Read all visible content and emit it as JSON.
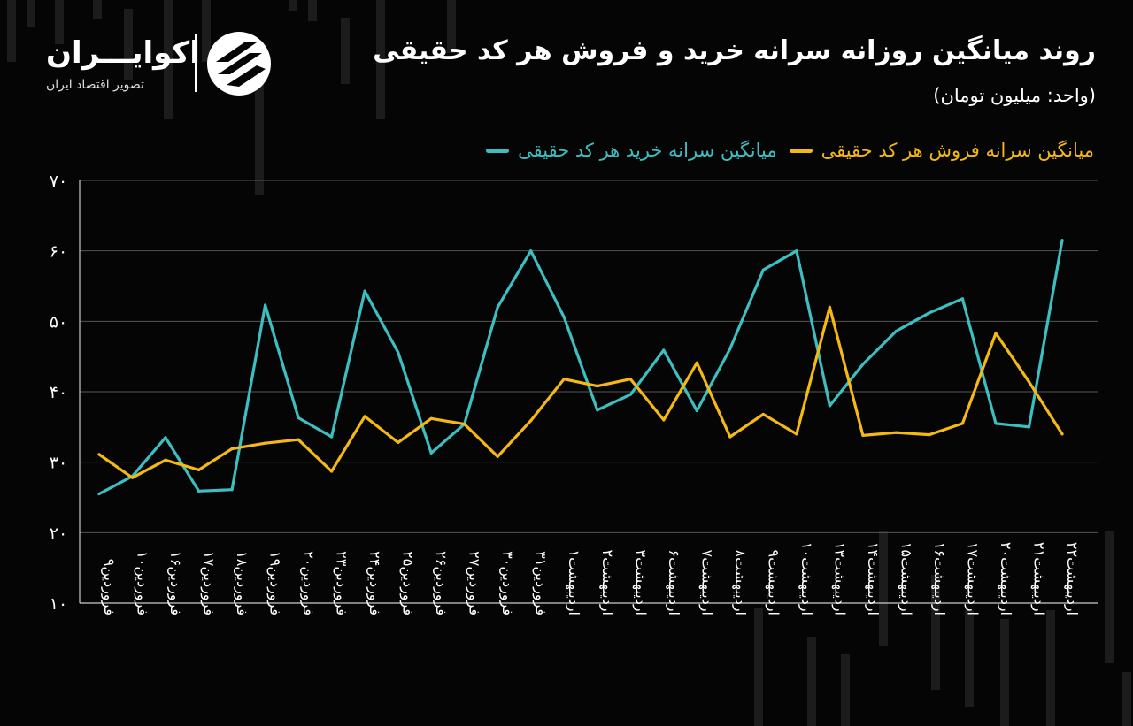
{
  "header": {
    "title": "روند میانگین روزانه سرانه خرید و فروش هر کد حقیقی",
    "unit": "(واحد: میلیون تومان)"
  },
  "brand": {
    "name": "اکوایـــران",
    "tagline": "تصویر اقتصاد ایران"
  },
  "colors": {
    "buy": "#3dbfc2",
    "sell": "#f5b914",
    "background": "#050505",
    "grid": "#555555"
  },
  "chart_data": {
    "type": "line",
    "title": "روند میانگین روزانه سرانه خرید و فروش هر کد حقیقی",
    "ylabel": "(واحد: میلیون تومان)",
    "xlabel": "",
    "ylim": [
      10,
      70
    ],
    "yticks": [
      "۱۰",
      "۲۰",
      "۳۰",
      "۴۰",
      "۵۰",
      "۶۰",
      "۷۰"
    ],
    "ytick_values": [
      10,
      20,
      30,
      40,
      50,
      60,
      70
    ],
    "grid": true,
    "legend_position": "top-right",
    "categories": [
      "فروردین۹",
      "فروردین۱۰",
      "فروردین۱۶",
      "فروردین۱۷",
      "فروردین۱۸",
      "فروردین۱۹",
      "فروردین۲۰",
      "فروردین۲۳",
      "فروردین۲۴",
      "فروردین۲۵",
      "فروردین۲۶",
      "فروردین۲۷",
      "فروردین۳۰",
      "فروردین۳۱",
      "اردیبهشت۱",
      "اردیبهشت۲",
      "اردیبهشت۳",
      "اردیبهشت۶",
      "اردیبهشت۷",
      "اردیبهشت۸",
      "اردیبهشت۹",
      "اردیبهشت۱۰",
      "اردیبهشت۱۳",
      "اردیبهشت۱۴",
      "اردیبهشت۱۵",
      "اردیبهشت۱۶",
      "اردیبهشت۱۷",
      "اردیبهشت۲۰",
      "اردیبهشت۲۱",
      "اردیبهشت۲۲"
    ],
    "series": [
      {
        "name": "میانگین سرانه خرید هر کد حقیقی",
        "color": "#3dbfc2",
        "values": [
          25.5,
          28.0,
          33.5,
          25.9,
          26.1,
          52.3,
          36.3,
          33.6,
          54.3,
          45.6,
          31.3,
          35.4,
          52.0,
          60.0,
          50.6,
          37.4,
          39.6,
          45.9,
          37.3,
          46.1,
          57.3,
          60.0,
          38.0,
          43.9,
          48.6,
          51.2,
          53.2,
          35.5,
          35.0,
          61.5
        ]
      },
      {
        "name": "میانگین سرانه فروش هر کد حقیقی",
        "color": "#f5b914",
        "values": [
          31.1,
          27.8,
          30.3,
          28.9,
          31.9,
          32.7,
          33.2,
          28.7,
          36.5,
          32.8,
          36.2,
          35.4,
          30.8,
          35.9,
          41.8,
          40.8,
          41.8,
          36.0,
          44.1,
          33.6,
          36.8,
          34.0,
          52.0,
          33.8,
          34.2,
          33.9,
          35.5,
          48.3,
          41.4,
          34.0
        ]
      }
    ]
  }
}
